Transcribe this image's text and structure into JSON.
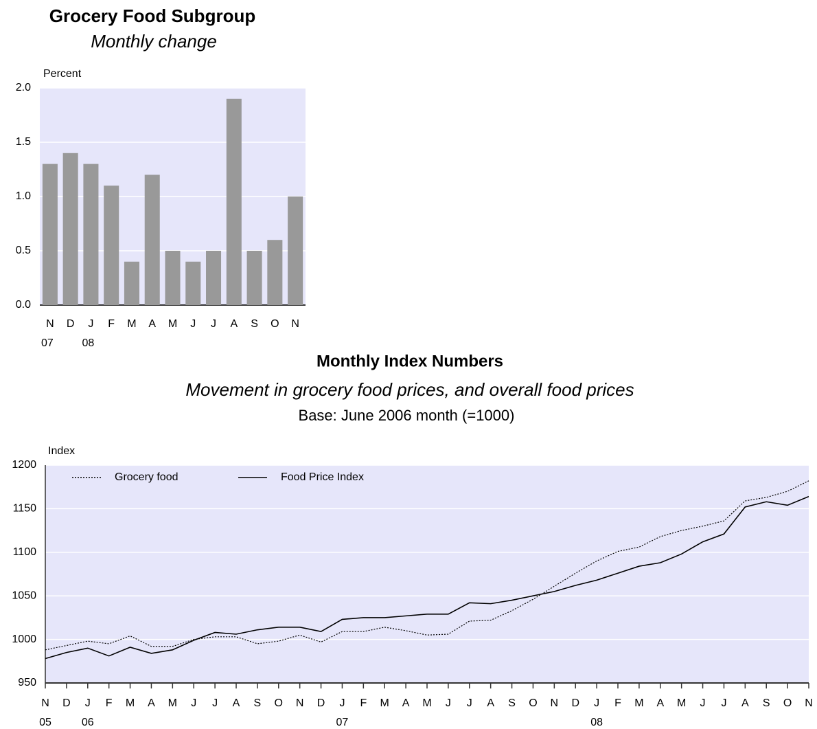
{
  "chart_data": [
    {
      "type": "bar",
      "title": "Grocery Food Subgroup",
      "subtitle": "Monthly change",
      "y_label": "Percent",
      "categories": [
        "N",
        "D",
        "J",
        "F",
        "M",
        "A",
        "M",
        "J",
        "J",
        "A",
        "S",
        "O",
        "N"
      ],
      "year_labels": [
        "07",
        null,
        "08",
        null,
        null,
        null,
        null,
        null,
        null,
        null,
        null,
        null,
        null
      ],
      "values": [
        1.3,
        1.4,
        1.3,
        1.1,
        0.4,
        1.2,
        0.5,
        0.4,
        0.5,
        1.9,
        0.5,
        0.6,
        1.0
      ],
      "color": "#999999",
      "background": "#e6e6fa",
      "ylim": [
        0,
        2
      ],
      "yticks": [
        {
          "value": 0,
          "label": "0.0"
        },
        {
          "value": 0.5,
          "label": "0.5"
        },
        {
          "value": 1,
          "label": "1.0"
        },
        {
          "value": 1.5,
          "label": "1.5"
        },
        {
          "value": 2,
          "label": "2.0"
        }
      ],
      "grid": true
    },
    {
      "type": "line",
      "title": "Monthly Index Numbers",
      "subtitle": "Movement in grocery food prices, and overall food prices",
      "note": "Base: June 2006 month (=1000)",
      "y_label": "Index",
      "categories": [
        "N",
        "D",
        "J",
        "F",
        "M",
        "A",
        "M",
        "J",
        "J",
        "A",
        "S",
        "O",
        "N",
        "D",
        "J",
        "F",
        "M",
        "A",
        "M",
        "J",
        "J",
        "A",
        "S",
        "O",
        "N",
        "D",
        "J",
        "F",
        "M",
        "A",
        "M",
        "J",
        "J",
        "A",
        "S",
        "O",
        "N"
      ],
      "year_labels": [
        "05",
        null,
        "06",
        null,
        null,
        null,
        null,
        null,
        null,
        null,
        null,
        null,
        null,
        null,
        "07",
        null,
        null,
        null,
        null,
        null,
        null,
        null,
        null,
        null,
        null,
        null,
        "08",
        null,
        null,
        null,
        null,
        null,
        null,
        null,
        null,
        null,
        null
      ],
      "series": [
        {
          "name": "Grocery food",
          "color": "#000000",
          "dash": "dotted",
          "values": [
            988,
            993,
            998,
            995,
            1004,
            992,
            992,
            1000,
            1003,
            1003,
            995,
            998,
            1005,
            997,
            1009,
            1009,
            1014,
            1010,
            1005,
            1006,
            1021,
            1022,
            1033,
            1046,
            1061,
            1076,
            1090,
            1101,
            1106,
            1118,
            1125,
            1130,
            1136,
            1159,
            1163,
            1170,
            1182
          ]
        },
        {
          "name": "Food Price Index",
          "color": "#000000",
          "dash": "solid",
          "values": [
            978,
            985,
            990,
            981,
            991,
            984,
            988,
            999,
            1008,
            1006,
            1011,
            1014,
            1014,
            1009,
            1023,
            1025,
            1025,
            1027,
            1029,
            1029,
            1042,
            1041,
            1045,
            1050,
            1055,
            1062,
            1068,
            1076,
            1084,
            1088,
            1098,
            1112,
            1121,
            1152,
            1158,
            1154,
            1164
          ]
        }
      ],
      "background": "#e6e6fa",
      "ylim": [
        950,
        1200
      ],
      "yticks": [
        950,
        1000,
        1050,
        1100,
        1150,
        1200
      ],
      "grid": true,
      "legend": "top-left"
    }
  ]
}
